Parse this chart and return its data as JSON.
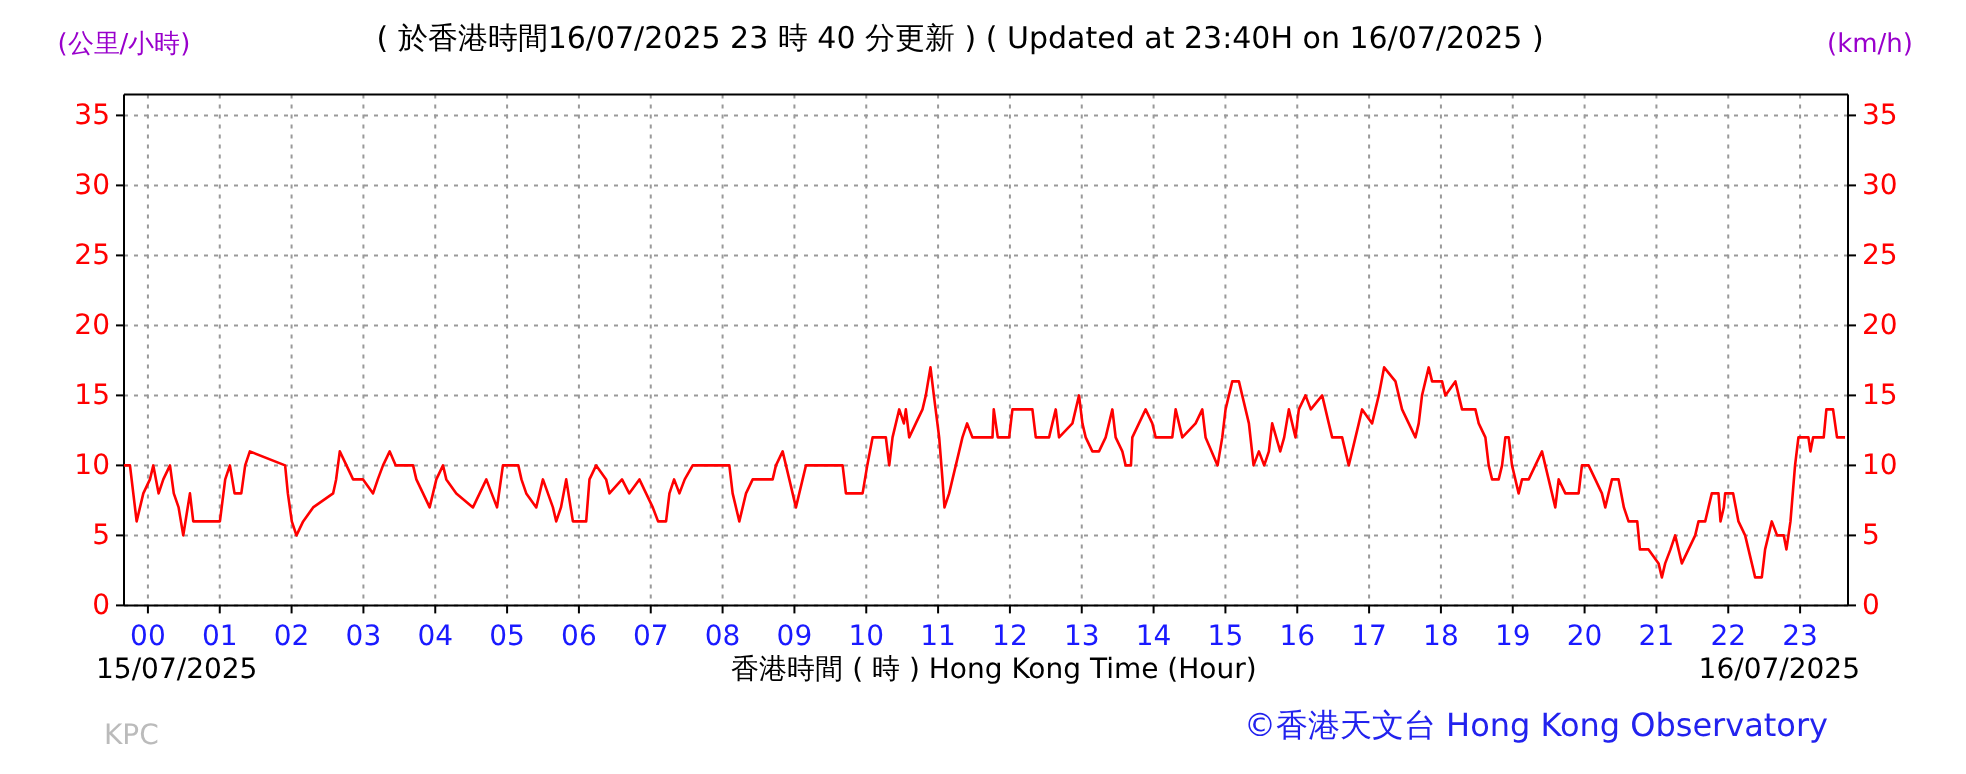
{
  "chart_data": {
    "type": "line",
    "title": "( 於香港時間16/07/2025 23 時 40 分更新 ) ( Updated at 23:40H on 16/07/2025 )",
    "xlabel": "香港時間 ( 時 )  Hong Kong Time (Hour)",
    "ylabel": "(公里/小時)",
    "y2label": "(km/h)",
    "annotations": [
      "15/07/2025",
      "16/07/2025",
      "KPC",
      "©香港天文台 Hong Kong Observatory"
    ],
    "xlim": [
      -0.333,
      23.667
    ],
    "xticks": [
      {
        "value": 0,
        "label": "00"
      },
      {
        "value": 1,
        "label": "01"
      },
      {
        "value": 2,
        "label": "02"
      },
      {
        "value": 3,
        "label": "03"
      },
      {
        "value": 4,
        "label": "04"
      },
      {
        "value": 5,
        "label": "05"
      },
      {
        "value": 6,
        "label": "06"
      },
      {
        "value": 7,
        "label": "07"
      },
      {
        "value": 8,
        "label": "08"
      },
      {
        "value": 9,
        "label": "09"
      },
      {
        "value": 10,
        "label": "10"
      },
      {
        "value": 11,
        "label": "11"
      },
      {
        "value": 12,
        "label": "12"
      },
      {
        "value": 13,
        "label": "13"
      },
      {
        "value": 14,
        "label": "14"
      },
      {
        "value": 15,
        "label": "15"
      },
      {
        "value": 16,
        "label": "16"
      },
      {
        "value": 17,
        "label": "17"
      },
      {
        "value": 18,
        "label": "18"
      },
      {
        "value": 19,
        "label": "19"
      },
      {
        "value": 20,
        "label": "20"
      },
      {
        "value": 21,
        "label": "21"
      },
      {
        "value": 22,
        "label": "22"
      },
      {
        "value": 23,
        "label": "23"
      }
    ],
    "ylim": [
      0,
      36.5
    ],
    "yticks": [
      0,
      5,
      10,
      15,
      20,
      25,
      30,
      35
    ],
    "y2lim": [
      0,
      36.5
    ],
    "y2ticks": [
      0,
      5,
      10,
      15,
      20,
      25,
      30,
      35
    ],
    "grid": true,
    "line_style": "solid",
    "marker": "none",
    "series": [
      {
        "color": "#ff0000",
        "x": [
          -0.333,
          -0.25,
          -0.157,
          -0.064,
          0.028,
          0.075,
          0.149,
          0.214,
          0.307,
          0.36,
          0.427,
          0.492,
          0.585,
          0.631,
          1.002,
          1.076,
          1.141,
          1.206,
          1.3,
          1.354,
          1.419,
          1.91,
          1.948,
          2.003,
          2.068,
          2.161,
          2.3,
          2.578,
          2.62,
          2.671,
          2.764,
          2.856,
          2.995,
          3.134,
          3.2,
          3.273,
          3.366,
          3.45,
          3.691,
          3.737,
          3.83,
          3.922,
          4.015,
          4.108,
          4.154,
          4.293,
          4.525,
          4.618,
          4.711,
          4.785,
          4.86,
          4.942,
          5.156,
          5.2,
          5.267,
          5.406,
          5.499,
          5.638,
          5.684,
          5.75,
          5.823,
          5.916,
          6.101,
          6.147,
          6.24,
          6.379,
          6.425,
          6.6,
          6.7,
          6.842,
          6.935,
          7.028,
          7.102,
          7.213,
          7.26,
          7.325,
          7.399,
          7.473,
          7.584,
          8.094,
          8.14,
          8.233,
          8.326,
          8.419,
          8.697,
          8.743,
          8.836,
          8.929,
          9.021,
          9.114,
          9.161,
          9.671,
          9.717,
          9.949,
          10.014,
          10.088,
          10.273,
          10.32,
          10.366,
          10.459,
          10.524,
          10.551,
          10.598,
          10.69,
          10.783,
          10.829,
          10.894,
          10.941,
          11.015,
          11.061,
          11.089,
          11.154,
          11.2,
          11.293,
          11.339,
          11.404,
          11.478,
          11.757,
          11.775,
          11.831,
          11.989,
          12.035,
          12.313,
          12.36,
          12.545,
          12.591,
          12.638,
          12.684,
          12.87,
          12.962,
          13.009,
          13.055,
          13.148,
          13.24,
          13.333,
          13.426,
          13.472,
          13.565,
          13.611,
          13.685,
          13.704,
          13.889,
          13.982,
          14.029,
          14.26,
          14.307,
          14.4,
          14.585,
          14.678,
          14.724,
          14.891,
          14.956,
          15.002,
          15.095,
          15.188,
          15.234,
          15.327,
          15.392,
          15.466,
          15.54,
          15.605,
          15.651,
          15.763,
          15.818,
          15.883,
          15.976,
          16.022,
          16.115,
          16.189,
          16.347,
          16.393,
          16.439,
          16.486,
          16.625,
          16.671,
          16.717,
          16.764,
          16.857,
          16.903,
          17.042,
          17.088,
          17.135,
          17.209,
          17.367,
          17.459,
          17.552,
          17.645,
          17.691,
          17.737,
          17.83,
          17.877,
          18.016,
          18.062,
          18.201,
          18.294,
          18.48,
          18.526,
          18.619,
          18.665,
          18.712,
          18.804,
          18.851,
          18.897,
          18.944,
          18.99,
          19.082,
          19.129,
          19.222,
          19.314,
          19.407,
          19.453,
          19.546,
          19.592,
          19.639,
          19.732,
          19.917,
          19.963,
          20.056,
          20.149,
          20.241,
          20.288,
          20.334,
          20.381,
          20.473,
          20.547,
          20.612,
          20.733,
          20.77,
          20.89,
          21.03,
          21.076,
          21.122,
          21.196,
          21.261,
          21.354,
          21.447,
          21.54,
          21.586,
          21.679,
          21.725,
          21.771,
          21.864,
          21.892,
          21.938,
          21.957,
          22.068,
          22.142,
          22.235,
          22.328,
          22.374,
          22.467,
          22.513,
          22.56,
          22.606,
          22.68,
          22.773,
          22.81,
          22.866,
          22.93,
          22.977,
          23.116,
          23.144,
          23.181,
          23.329,
          23.366,
          23.459,
          23.514,
          23.626
        ],
        "values": [
          10,
          10,
          6,
          8,
          9,
          10,
          8,
          9,
          10,
          8,
          7,
          5,
          8,
          6,
          6,
          9,
          10,
          8,
          8,
          10,
          11,
          10,
          8,
          6,
          5,
          6,
          7,
          8,
          9,
          11,
          10,
          9,
          9,
          8,
          9,
          10,
          11,
          10,
          10,
          9,
          8,
          7,
          9,
          10,
          9,
          8,
          7,
          8,
          9,
          8,
          7,
          10,
          10,
          9,
          8,
          7,
          9,
          7,
          6,
          7,
          9,
          6,
          6,
          9,
          10,
          9,
          8,
          9,
          8,
          9,
          8,
          7,
          6,
          6,
          8,
          9,
          8,
          9,
          10,
          10,
          8,
          6,
          8,
          9,
          9,
          10,
          11,
          9,
          7,
          9,
          10,
          10,
          8,
          8,
          10,
          12,
          12,
          10,
          12,
          14,
          13,
          14,
          12,
          13,
          14,
          15,
          17,
          15,
          12,
          9,
          7,
          8,
          9,
          11,
          12,
          13,
          12,
          12,
          14,
          12,
          12,
          14,
          14,
          12,
          12,
          13,
          14,
          12,
          13,
          15,
          13,
          12,
          11,
          11,
          12,
          14,
          12,
          11,
          10,
          10,
          12,
          14,
          13,
          12,
          12,
          14,
          12,
          13,
          14,
          12,
          10,
          12,
          14,
          16,
          16,
          15,
          13,
          10,
          11,
          10,
          11,
          13,
          11,
          12,
          14,
          12,
          14,
          15,
          14,
          15,
          14,
          13,
          12,
          12,
          11,
          10,
          11,
          13,
          14,
          13,
          14,
          15,
          17,
          16,
          14,
          13,
          12,
          13,
          15,
          17,
          16,
          16,
          15,
          16,
          14,
          14,
          13,
          12,
          10,
          9,
          9,
          10,
          12,
          12,
          10,
          8,
          9,
          9,
          10,
          11,
          10,
          8,
          7,
          9,
          8,
          8,
          10,
          10,
          9,
          8,
          7,
          8,
          9,
          9,
          7,
          6,
          6,
          4,
          4,
          3,
          2,
          3,
          4,
          5,
          3,
          4,
          5,
          6,
          6,
          7,
          8,
          8,
          6,
          7,
          8,
          8,
          6,
          5,
          3,
          2,
          2,
          4,
          5,
          6,
          5,
          5,
          4,
          6,
          10,
          12,
          12,
          11,
          12,
          12,
          14,
          14,
          12,
          12
        ]
      }
    ]
  }
}
